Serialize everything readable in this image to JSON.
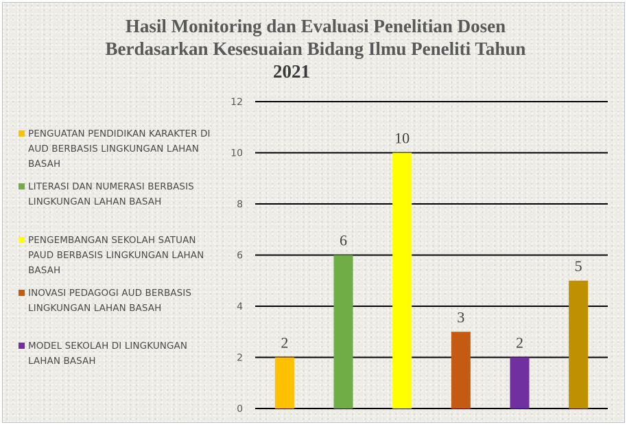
{
  "title_lines": [
    "Hasil Monitoring dan Evaluasi Penelitian Dosen",
    "Berdasarkan Kesesuaian Bidang Ilmu Peneliti Tahun",
    "2021"
  ],
  "chart_data": {
    "type": "bar",
    "title": "Hasil Monitoring dan Evaluasi Penelitian Dosen Berdasarkan Kesesuaian Bidang Ilmu Peneliti Tahun 2021",
    "xlabel": "",
    "ylabel": "",
    "ylim": [
      0,
      12
    ],
    "yticks": [
      0,
      2,
      4,
      6,
      8,
      10,
      12
    ],
    "grid": true,
    "legend_position": "left",
    "categories": [
      "PENGUATAN PENDIDIKAN KARAKTER DI AUD BERBASIS LINGKUNGAN LAHAN BASAH",
      "LITERASI DAN NUMERASI BERBASIS LINGKUNGAN LAHAN BASAH",
      "PENGEMBANGAN SEKOLAH SATUAN PAUD BERBASIS LINGKUNGAN LAHAN BASAH",
      "INOVASI PEDAGOGI AUD BERBASIS LINGKUNGAN LAHAN BASAH",
      "MODEL SEKOLAH DI LINGKUNGAN LAHAN BASAH",
      ""
    ],
    "values": [
      2,
      6,
      10,
      3,
      2,
      5
    ],
    "colors": [
      "#ffc000",
      "#70ad47",
      "#ffff00",
      "#c55a11",
      "#7030a0",
      "#bf9000"
    ],
    "legend": [
      {
        "label": "PENGUATAN PENDIDIKAN KARAKTER DI AUD BERBASIS LINGKUNGAN LAHAN BASAH",
        "color": "#ffc000"
      },
      {
        "label": "LITERASI DAN NUMERASI BERBASIS LINGKUNGAN LAHAN BASAH",
        "color": "#70ad47"
      },
      {
        "label": "PENGEMBANGAN SEKOLAH SATUAN PAUD BERBASIS LINGKUNGAN LAHAN BASAH",
        "color": "#ffff00"
      },
      {
        "label": "INOVASI PEDAGOGI AUD BERBASIS LINGKUNGAN LAHAN BASAH",
        "color": "#c55a11"
      },
      {
        "label": "MODEL SEKOLAH DI LINGKUNGAN LAHAN BASAH",
        "color": "#7030a0"
      }
    ]
  }
}
